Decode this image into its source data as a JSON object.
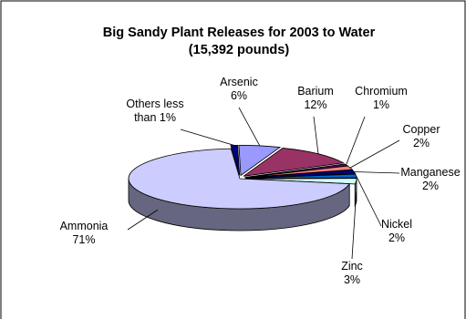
{
  "chart_data": {
    "type": "pie",
    "style": "3d-exploded-pie",
    "title": "Big Sandy Plant Releases for 2003 to Water",
    "subtitle": "(15,392 pounds)",
    "slices": [
      {
        "name": "Ammonia",
        "percent_label": "71%",
        "value": 71,
        "color": "#ccccff"
      },
      {
        "name": "Arsenic",
        "percent_label": "6%",
        "value": 6,
        "color": "#9999ff"
      },
      {
        "name": "Barium",
        "percent_label": "12%",
        "value": 12,
        "color": "#993366"
      },
      {
        "name": "Chromium",
        "percent_label": "1%",
        "value": 1,
        "color": "#660066"
      },
      {
        "name": "Copper",
        "percent_label": "2%",
        "value": 2,
        "color": "#ff8080"
      },
      {
        "name": "Manganese",
        "percent_label": "2%",
        "value": 2,
        "color": "#000080"
      },
      {
        "name": "Nickel",
        "percent_label": "2%",
        "value": 2,
        "color": "#0066cc"
      },
      {
        "name": "Zinc",
        "percent_label": "3%",
        "value": 3,
        "color": "#ccffff"
      },
      {
        "name": "Others less than 1%",
        "percent_label": "",
        "value": 1,
        "color": "#000080"
      }
    ],
    "legend": "none"
  }
}
